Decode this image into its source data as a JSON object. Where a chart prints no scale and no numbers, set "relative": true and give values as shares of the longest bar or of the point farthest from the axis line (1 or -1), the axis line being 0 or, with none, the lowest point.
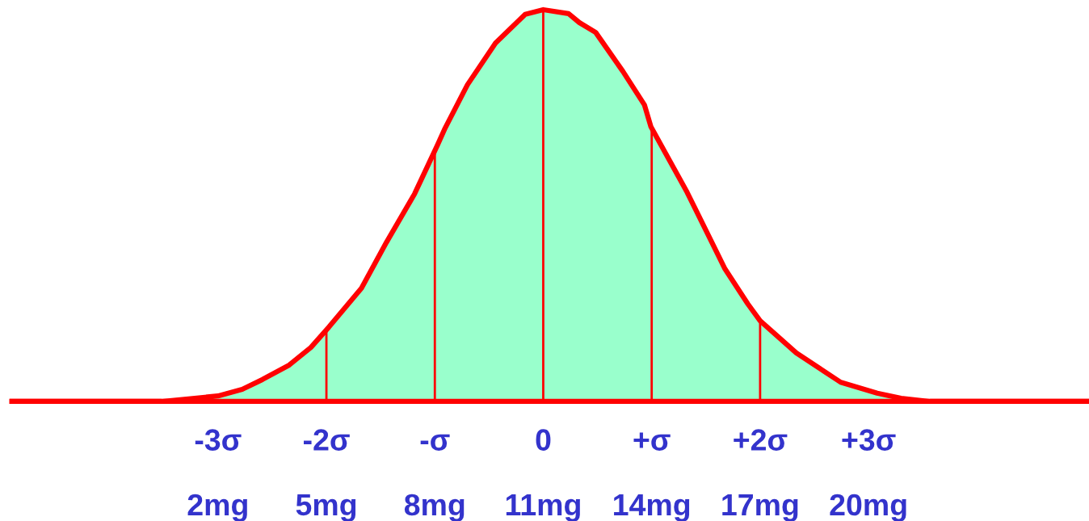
{
  "chart_data": {
    "type": "area",
    "relative": true,
    "x": [
      -3.7,
      0.44,
      2.0,
      2.67,
      3.23,
      3.97,
      4.57,
      5.07,
      5.97,
      6.66,
      7.44,
      8.07,
      8.27,
      8.9,
      9.68,
      10.5,
      11.0,
      11.7,
      12.0,
      12.45,
      13.2,
      13.8,
      13.98,
      14.98,
      16.03,
      16.66,
      17.0,
      18.0,
      19.23,
      20.24,
      20.9,
      21.7,
      26.1
    ],
    "series": [
      {
        "color": "#99ffcc",
        "values": [
          0,
          0,
          0.014,
          0.031,
          0.056,
          0.093,
          0.138,
          0.19,
          0.289,
          0.406,
          0.53,
          0.654,
          0.695,
          0.808,
          0.915,
          0.988,
          1.0,
          0.99,
          0.967,
          0.942,
          0.843,
          0.757,
          0.701,
          0.534,
          0.338,
          0.249,
          0.206,
          0.124,
          0.049,
          0.021,
          0.008,
          0,
          0
        ]
      }
    ],
    "xlim": [
      -3.7,
      26.1
    ],
    "xticks": [
      {
        "value": 2,
        "label": "2mg"
      },
      {
        "value": 5,
        "label": "5mg"
      },
      {
        "value": 8,
        "label": "8mg"
      },
      {
        "value": 11,
        "label": "11mg"
      },
      {
        "value": 14,
        "label": "14mg"
      },
      {
        "value": 17,
        "label": "17mg"
      },
      {
        "value": 20,
        "label": "20mg"
      }
    ],
    "x2lim": [
      -4.9,
      5.033
    ],
    "x2ticks": [
      {
        "value": -3,
        "label": "-3σ"
      },
      {
        "value": -2,
        "label": "-2σ"
      },
      {
        "value": -1,
        "label": "-σ"
      },
      0,
      {
        "value": 1,
        "label": "+σ"
      },
      {
        "value": 2,
        "label": "+2σ"
      },
      {
        "value": 3,
        "label": "+3σ"
      }
    ],
    "ref_lines": [
      {
        "axis": "x",
        "value": 5,
        "color": "#ff0000"
      },
      {
        "axis": "x",
        "value": 8,
        "color": "#ff0000"
      },
      {
        "axis": "x",
        "value": 11,
        "color": "#ff0000"
      },
      {
        "axis": "x",
        "value": 14,
        "color": "#ff0000"
      },
      {
        "axis": "x",
        "value": 17,
        "color": "#ff0000"
      }
    ],
    "grid": false,
    "legend": false
  }
}
